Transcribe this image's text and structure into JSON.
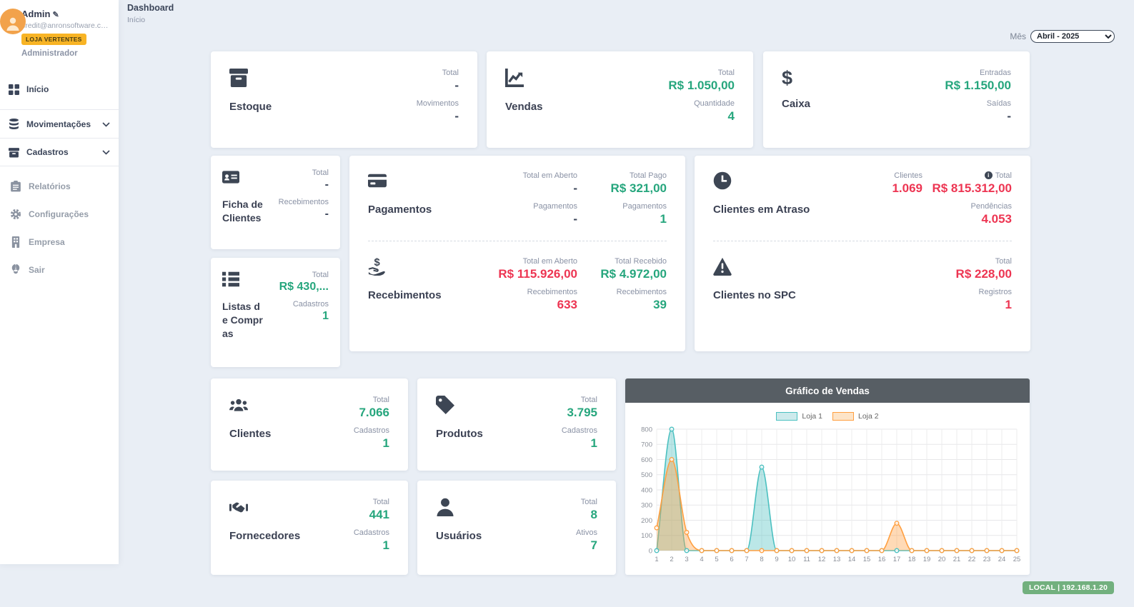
{
  "header": {
    "title": "Dashboard",
    "breadcrumb": "Início",
    "month_label": "Mês",
    "month_value": "Abril - 2025"
  },
  "sidebar": {
    "user": {
      "name": "Admin",
      "email": "credit@anronsoftware.co...",
      "badge": "LOJA VERTENTES",
      "role": "Administrador"
    },
    "items": [
      {
        "label": "Início"
      },
      {
        "label": "Movimentações"
      },
      {
        "label": "Cadastros"
      },
      {
        "label": "Relatórios"
      },
      {
        "label": "Configurações"
      },
      {
        "label": "Empresa"
      },
      {
        "label": "Sair"
      }
    ]
  },
  "cards": {
    "estoque": {
      "title": "Estoque",
      "stats": [
        {
          "label": "Total",
          "value": "-"
        },
        {
          "label": "Movimentos",
          "value": "-"
        }
      ]
    },
    "vendas": {
      "title": "Vendas",
      "stats": [
        {
          "label": "Total",
          "value": "R$ 1.050,00"
        },
        {
          "label": "Quantidade",
          "value": "4"
        }
      ]
    },
    "caixa": {
      "title": "Caixa",
      "stats": [
        {
          "label": "Entradas",
          "value": "R$ 1.150,00"
        },
        {
          "label": "Saídas",
          "value": "-"
        }
      ]
    },
    "ficha": {
      "title": "Ficha de Clientes",
      "stats": [
        {
          "label": "Total",
          "value": "-"
        },
        {
          "label": "Recebimentos",
          "value": "-"
        }
      ]
    },
    "listas": {
      "title": "Listas de Compras",
      "stats": [
        {
          "label": "Total",
          "value": "R$ 430,..."
        },
        {
          "label": "Cadastros",
          "value": "1"
        }
      ]
    },
    "pagamentos": {
      "title": "Pagamentos",
      "col1": [
        {
          "label": "Total em Aberto",
          "value": "-"
        },
        {
          "label": "Pagamentos",
          "value": "-"
        }
      ],
      "col2": [
        {
          "label": "Total Pago",
          "value": "R$ 321,00"
        },
        {
          "label": "Pagamentos",
          "value": "1"
        }
      ]
    },
    "recebimentos": {
      "title": "Recebimentos",
      "col1": [
        {
          "label": "Total em Aberto",
          "value": "R$ 115.926,00"
        },
        {
          "label": "Recebimentos",
          "value": "633"
        }
      ],
      "col2": [
        {
          "label": "Total Recebido",
          "value": "R$ 4.972,00"
        },
        {
          "label": "Recebimentos",
          "value": "39"
        }
      ]
    },
    "atraso": {
      "title": "Clientes em Atraso",
      "col1": [
        {
          "label": "Clientes",
          "value": "1.069"
        }
      ],
      "col2": [
        {
          "label": "Total",
          "value": "R$ 815.312,00"
        },
        {
          "label": "Pendências",
          "value": "4.053"
        }
      ]
    },
    "spc": {
      "title": "Clientes no SPC",
      "col2": [
        {
          "label": "Total",
          "value": "R$ 228,00"
        },
        {
          "label": "Registros",
          "value": "1"
        }
      ]
    },
    "clientes": {
      "title": "Clientes",
      "stats": [
        {
          "label": "Total",
          "value": "7.066"
        },
        {
          "label": "Cadastros",
          "value": "1"
        }
      ]
    },
    "produtos": {
      "title": "Produtos",
      "stats": [
        {
          "label": "Total",
          "value": "3.795"
        },
        {
          "label": "Cadastros",
          "value": "1"
        }
      ]
    },
    "fornecedores": {
      "title": "Fornecedores",
      "stats": [
        {
          "label": "Total",
          "value": "441"
        },
        {
          "label": "Cadastros",
          "value": "1"
        }
      ]
    },
    "usuarios": {
      "title": "Usuários",
      "stats": [
        {
          "label": "Total",
          "value": "8"
        },
        {
          "label": "Ativos",
          "value": "7"
        }
      ]
    }
  },
  "chart_data": {
    "type": "line",
    "title": "Gráfico de Vendas",
    "x": [
      1,
      2,
      3,
      4,
      5,
      6,
      7,
      8,
      9,
      10,
      11,
      12,
      13,
      14,
      15,
      16,
      17,
      18,
      19,
      20,
      21,
      22,
      23,
      24,
      25
    ],
    "series": [
      {
        "name": "Loja 1",
        "color": "#4bc0c0",
        "fill": "rgba(75,192,192,0.38)",
        "swatch_bg": "#cdeaec",
        "values": [
          0,
          800,
          0,
          0,
          0,
          0,
          0,
          550,
          0,
          0,
          0,
          0,
          0,
          0,
          0,
          0,
          0,
          0,
          0,
          0,
          0,
          0,
          0,
          0,
          0
        ]
      },
      {
        "name": "Loja 2",
        "color": "#ff9f40",
        "fill": "rgba(255,159,64,0.38)",
        "swatch_bg": "#fde4c8",
        "values": [
          150,
          600,
          120,
          0,
          0,
          0,
          0,
          0,
          0,
          0,
          0,
          0,
          0,
          0,
          0,
          0,
          180,
          0,
          0,
          0,
          0,
          0,
          0,
          0,
          0
        ]
      }
    ],
    "ylim": [
      0,
      800
    ],
    "ytick_step": 100,
    "grid": true,
    "legend_position": "top"
  },
  "footer_badge": "LOCAL | 192.168.1.20",
  "colors": {
    "green": "#26a67d",
    "red": "#ed3552",
    "dark": "#3b4559",
    "badge_orange": "#f8b425",
    "env_badge_green": "#72b07e",
    "chart_header_gray": "#575e64",
    "background": "#e9eef5"
  }
}
